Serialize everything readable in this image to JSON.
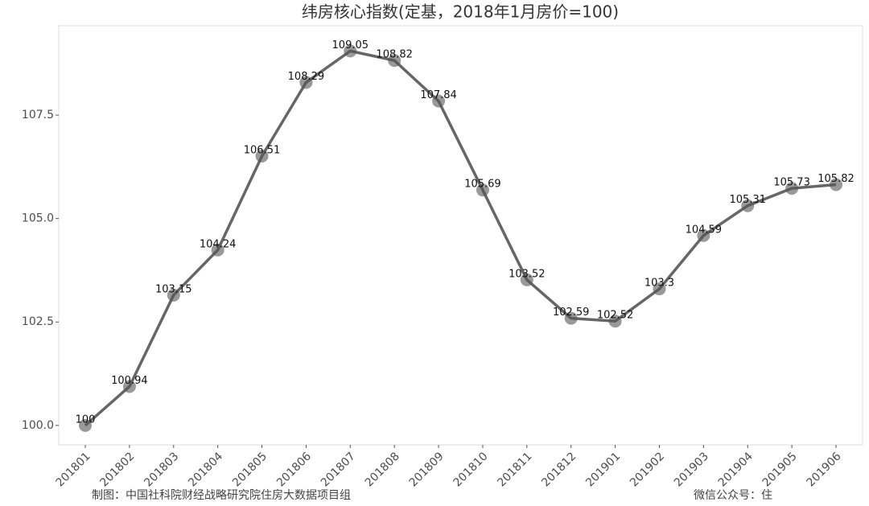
{
  "chart_data": {
    "type": "line",
    "title": "纬房核心指数(定基，2018年1月房价=100)",
    "categories": [
      "201801",
      "201802",
      "201803",
      "201804",
      "201805",
      "201806",
      "201807",
      "201808",
      "201809",
      "201810",
      "201811",
      "201812",
      "201901",
      "201902",
      "201903",
      "201904",
      "201905",
      "201906"
    ],
    "values": [
      100,
      100.94,
      103.15,
      104.24,
      106.51,
      108.29,
      109.05,
      108.82,
      107.84,
      105.69,
      103.52,
      102.59,
      102.52,
      103.3,
      104.59,
      105.31,
      105.73,
      105.82
    ],
    "color": "#666666",
    "ylim": [
      99.53,
      109.66
    ],
    "yticks": [
      {
        "value": 100,
        "label": "100.0"
      },
      102.5,
      {
        "value": 105,
        "label": "105.0"
      },
      107.5
    ],
    "grid": false,
    "footer_left": "制图：中国社科院财经战略研究院住房大数据项目组",
    "footer_right": "微信公众号：住"
  }
}
